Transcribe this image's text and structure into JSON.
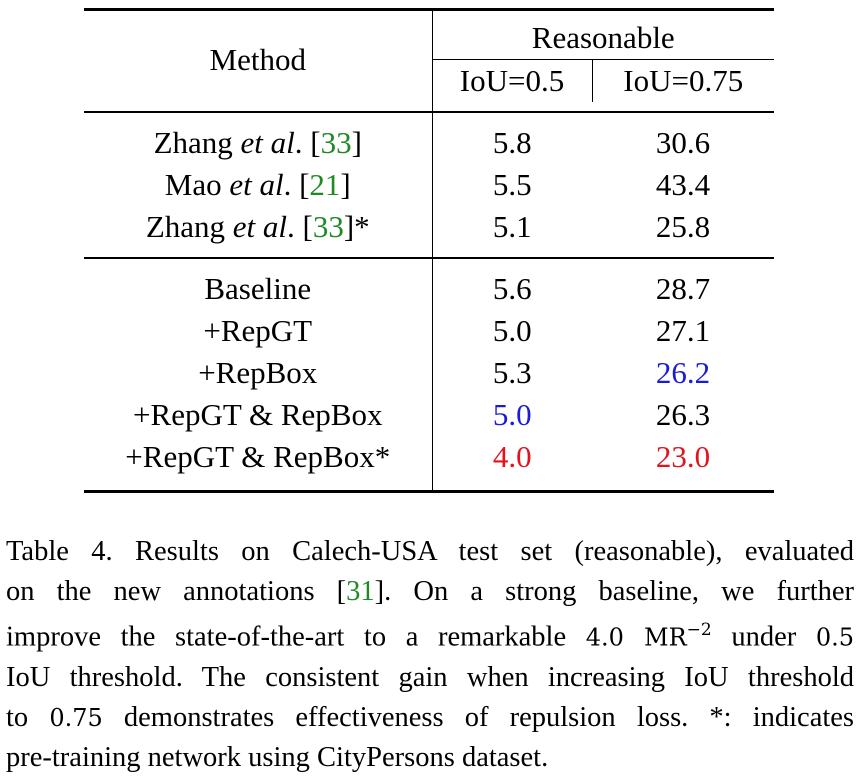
{
  "table": {
    "header": {
      "method": "Method",
      "group": "Reasonable",
      "col1": "IoU=0.5",
      "col2": "IoU=0.75"
    },
    "group1": [
      {
        "name": "Zhang",
        "etal": "et al",
        "dot": ".",
        "cite_open": "[",
        "cite": "33",
        "cite_close": "]",
        "suffix": "",
        "v1": "5.8",
        "v2": "30.6"
      },
      {
        "name": "Mao",
        "etal": "et al",
        "dot": ".",
        "cite_open": "[",
        "cite": "21",
        "cite_close": "]",
        "suffix": "",
        "v1": "5.5",
        "v2": "43.4"
      },
      {
        "name": "Zhang",
        "etal": "et al",
        "dot": ".",
        "cite_open": "[",
        "cite": "33",
        "cite_close": "]",
        "suffix": "*",
        "v1": "5.1",
        "v2": "25.8"
      }
    ],
    "group2": [
      {
        "method": "Baseline",
        "v1": "5.6",
        "v2": "28.7"
      },
      {
        "method": "+RepGT",
        "v1": "5.0",
        "v2": "27.1"
      },
      {
        "method": "+RepBox",
        "v1": "5.3",
        "v2": "26.2"
      },
      {
        "method": "+RepGT & RepBox",
        "v1": "5.0",
        "v2": "26.3"
      },
      {
        "method": "+RepGT & RepBox*",
        "v1": "4.0",
        "v2": "23.0"
      }
    ],
    "highlight_colors": {
      "best": "#e2131e",
      "second": "#1a1ad9",
      "citation": "#1f8a24"
    }
  },
  "caption": {
    "line1": "Table 4. Results on Calech-USA test set (reasonable), evaluated",
    "line2_pre": "on the new annotations [",
    "line2_cite": "31",
    "line2_post": "].  On a strong baseline, we further",
    "line3_pre": "improve the state-of-the-art to a remarkable ",
    "line3_val": "4.0 MR",
    "line3_sup": "−2",
    "line3_mid": " under ",
    "line3_val2": "0.5",
    "line4": "IoU threshold. The consistent gain when increasing IoU threshold",
    "line5_pre": "to ",
    "line5_val": "0.75",
    "line5_post": " demonstrates effectiveness of repulsion loss. *: indicates",
    "line6": "pre-training network using CityPersons dataset."
  }
}
